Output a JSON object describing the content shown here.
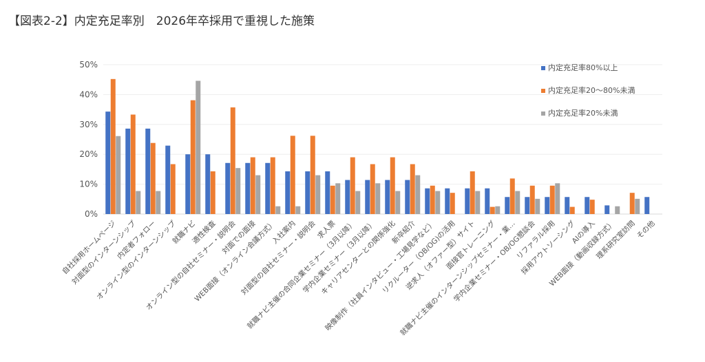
{
  "chart_data": {
    "type": "bar",
    "title": "【図表2-2】内定充足率別　2026年卒採用で重視した施策",
    "xlabel": "",
    "ylabel": "",
    "ylim": [
      0,
      50
    ],
    "yticks": [
      "0%",
      "10%",
      "20%",
      "30%",
      "40%",
      "50%"
    ],
    "grid": true,
    "legend_position": "top-right",
    "categories": [
      "自社採用ホームページ",
      "対面型のインターンシップ",
      "内定者フォロー",
      "オンライン型のインターンシップ",
      "就職ナビ",
      "適性検査",
      "オンライン型の自社セミナー・説明会",
      "対面での面接",
      "WEB面接（オンライン会議方式）",
      "入社案内",
      "対面型の自社セミナー・説明会",
      "求人票",
      "就職ナビ主催の合同企業セミナー（3月以降）",
      "学内企業セミナー（3月以降）",
      "キャリアセンターとの関係強化",
      "新卒紹介",
      "映像制作（社員インタビュー・工場見学など）",
      "リクルーター（OB/OG)の活用",
      "逆求人（オファー型）サイト",
      "面接官トレーニング",
      "就職ナビ主催のインターンシップセミナー・業…",
      "学内企業セミナー・OB/OG懇談会",
      "リファラル採用",
      "採用アウトソーシング",
      "AIの導入",
      "WEB面接（動画収録方式）",
      "理系研究室訪問",
      "その他"
    ],
    "series": [
      {
        "name": "内定充足率80%以上",
        "color": "#4472C4",
        "values": [
          34.3,
          28.6,
          28.6,
          22.9,
          20.0,
          20.0,
          17.1,
          17.1,
          17.1,
          14.3,
          14.3,
          14.3,
          11.4,
          11.4,
          11.4,
          11.4,
          8.6,
          8.6,
          8.6,
          8.6,
          5.7,
          5.7,
          5.7,
          5.7,
          5.7,
          2.9,
          0,
          5.7
        ]
      },
      {
        "name": "内定充足率20～80%未満",
        "color": "#ED7D31",
        "values": [
          45.2,
          33.3,
          23.8,
          16.7,
          38.1,
          14.3,
          35.7,
          19.0,
          19.0,
          26.2,
          26.2,
          9.5,
          19.0,
          16.7,
          19.0,
          16.7,
          9.5,
          7.1,
          14.3,
          2.4,
          11.9,
          9.5,
          9.5,
          2.4,
          4.8,
          0,
          7.1,
          0
        ]
      },
      {
        "name": "内定充足率20%未満",
        "color": "#A5A5A5",
        "values": [
          26.1,
          7.7,
          7.7,
          0,
          44.6,
          0,
          15.4,
          13.0,
          2.6,
          2.6,
          13.0,
          10.3,
          7.7,
          10.3,
          7.7,
          13.0,
          7.7,
          0,
          7.7,
          2.6,
          7.7,
          5.1,
          10.3,
          0,
          0,
          2.6,
          5.1,
          0
        ]
      }
    ]
  }
}
